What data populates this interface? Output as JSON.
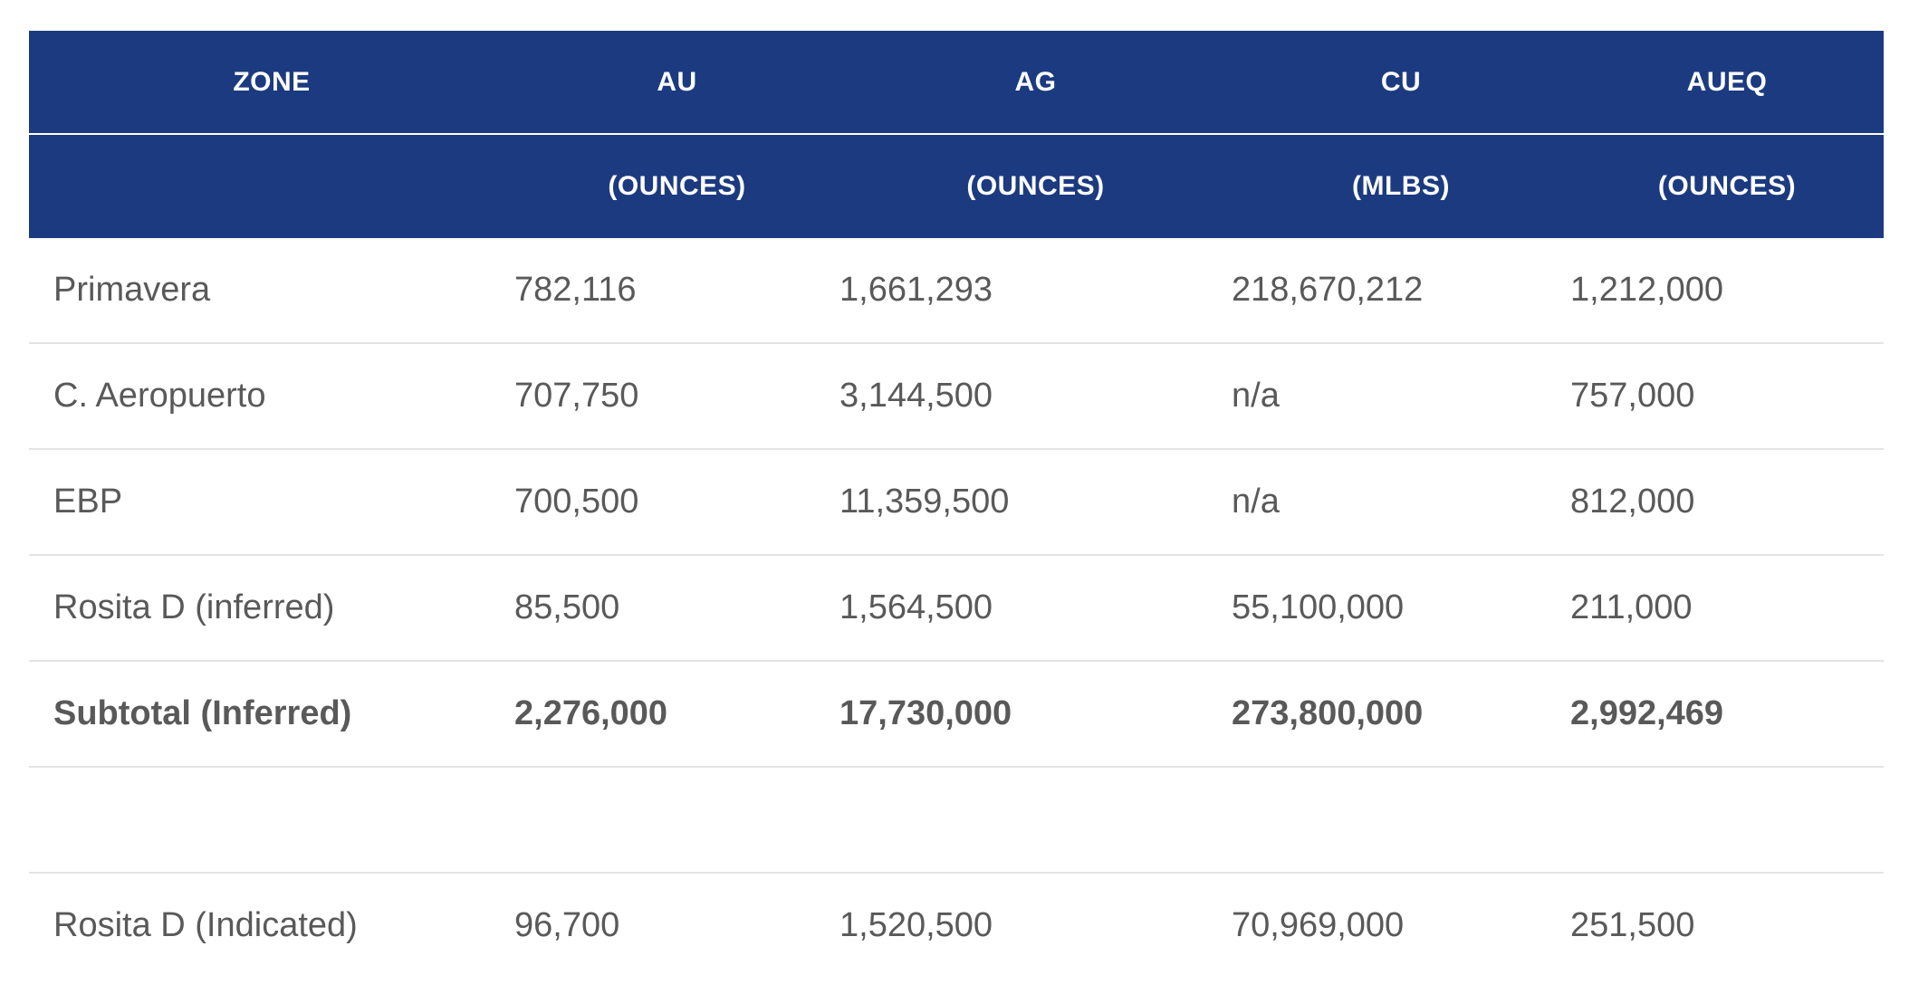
{
  "table": {
    "headers": [
      {
        "top": "ZONE",
        "bottom": ""
      },
      {
        "top": "AU",
        "bottom": "(OUNCES)"
      },
      {
        "top": "AG",
        "bottom": "(OUNCES)"
      },
      {
        "top": "CU",
        "bottom": "(MLBS)"
      },
      {
        "top": "AUEQ",
        "bottom": "(OUNCES)"
      }
    ],
    "rows": [
      {
        "zone": "Primavera",
        "au": "782,116",
        "ag": "1,661,293",
        "cu": "218,670,212",
        "aueq": "1,212,000"
      },
      {
        "zone": "C. Aeropuerto",
        "au": "707,750",
        "ag": "3,144,500",
        "cu": "n/a",
        "aueq": "757,000"
      },
      {
        "zone": "EBP",
        "au": "700,500",
        "ag": "11,359,500",
        "cu": "n/a",
        "aueq": "812,000"
      },
      {
        "zone": "Rosita D (inferred)",
        "au": "85,500",
        "ag": "1,564,500",
        "cu": "55,100,000",
        "aueq": "211,000"
      }
    ],
    "subtotal": {
      "zone": "Subtotal (Inferred)",
      "au": "2,276,000",
      "ag": "17,730,000",
      "cu": "273,800,000",
      "aueq": "2,992,469"
    },
    "indicated": {
      "zone": "Rosita D (Indicated)",
      "au": "96,700",
      "ag": "1,520,500",
      "cu": "70,969,000",
      "aueq": "251,500"
    }
  },
  "colors": {
    "header_bg": "#1c3a80",
    "header_text": "#ffffff",
    "body_text": "#595959",
    "row_divider": "#e4e4e4"
  }
}
